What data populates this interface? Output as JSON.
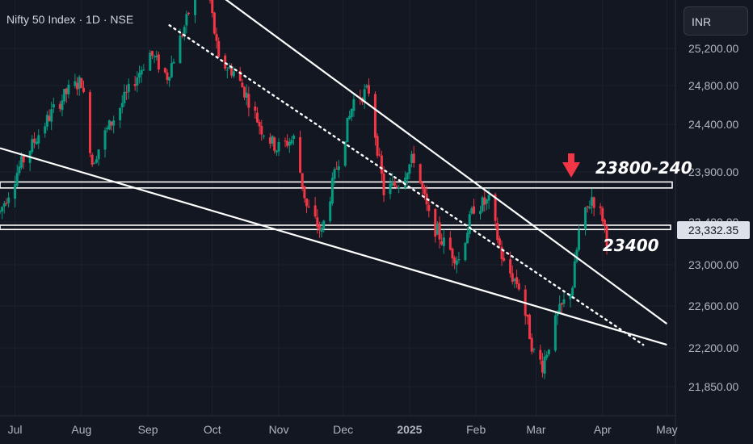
{
  "header": {
    "title": "Nifty 50 Index · 1D · NSE"
  },
  "currency": {
    "label": "INR"
  },
  "annotations": {
    "resistance_label": "23800-240",
    "support_label": "23400"
  },
  "last_price": {
    "value": "23,332.35",
    "color": "#dde2ea"
  },
  "colors": {
    "background": "#131722",
    "up": "#089981",
    "down": "#f23645",
    "grid": "#1e222d",
    "lines": "#ffffff",
    "arrow": "#f23645"
  },
  "chart_data": {
    "type": "candlestick",
    "title": "Nifty 50 Index · 1D · NSE",
    "y_ticks": [
      "25,200.00",
      "24,800.00",
      "24,400.00",
      "23,900.00",
      "23,400.00",
      "23,000.00",
      "22,600.00",
      "22,200.00",
      "21,850.00"
    ],
    "x_ticks": [
      "Jul",
      "Aug",
      "Sep",
      "Oct",
      "Nov",
      "Dec",
      "2025",
      "Feb",
      "Mar",
      "Apr",
      "May"
    ],
    "ylim": [
      21750,
      25450
    ],
    "xlim": [
      "2024-06-24",
      "2025-05-05"
    ],
    "grid": true,
    "path": [
      [
        "2024-06-24",
        23500
      ],
      [
        "2024-07-03",
        23950
      ],
      [
        "2024-07-12",
        24300
      ],
      [
        "2024-07-19",
        24550
      ],
      [
        "2024-07-26",
        24750
      ],
      [
        "2024-08-01",
        24850
      ],
      [
        "2024-08-06",
        24000
      ],
      [
        "2024-08-12",
        24300
      ],
      [
        "2024-08-22",
        24700
      ],
      [
        "2024-09-02",
        25150
      ],
      [
        "2024-09-10",
        24900
      ],
      [
        "2024-09-19",
        25500
      ],
      [
        "2024-09-27",
        26200
      ],
      [
        "2024-10-04",
        25050
      ],
      [
        "2024-10-11",
        24950
      ],
      [
        "2024-10-17",
        24700
      ],
      [
        "2024-10-24",
        24350
      ],
      [
        "2024-10-31",
        24150
      ],
      [
        "2024-11-08",
        24250
      ],
      [
        "2024-11-14",
        23550
      ],
      [
        "2024-11-21",
        23300
      ],
      [
        "2024-11-28",
        23950
      ],
      [
        "2024-12-06",
        24650
      ],
      [
        "2024-12-13",
        24750
      ],
      [
        "2024-12-20",
        23700
      ],
      [
        "2024-12-27",
        23800
      ],
      [
        "2025-01-03",
        24050
      ],
      [
        "2025-01-10",
        23450
      ],
      [
        "2025-01-17",
        23200
      ],
      [
        "2025-01-24",
        23050
      ],
      [
        "2025-01-31",
        23550
      ],
      [
        "2025-02-07",
        23600
      ],
      [
        "2025-02-14",
        23000
      ],
      [
        "2025-02-21",
        22800
      ],
      [
        "2025-02-28",
        22150
      ],
      [
        "2025-03-04",
        22050
      ],
      [
        "2025-03-11",
        22500
      ],
      [
        "2025-03-18",
        22800
      ],
      [
        "2025-03-21",
        23300
      ],
      [
        "2025-03-27",
        23650
      ],
      [
        "2025-04-01",
        23450
      ],
      [
        "2025-04-03",
        23250
      ]
    ],
    "last_close": 23332.35,
    "horizontal_zones": [
      {
        "label": "23800-240",
        "from": 23740,
        "to": 23800
      },
      {
        "label": "23400",
        "from": 23330,
        "to": 23370
      }
    ],
    "trendlines": [
      {
        "style": "solid",
        "from": [
          "2024-06-24",
          24150
        ],
        "to": [
          "2025-05-01",
          22230
        ]
      },
      {
        "style": "solid",
        "from": [
          "2024-10-03",
          25800
        ],
        "to": [
          "2025-05-01",
          22430
        ]
      },
      {
        "style": "dotted",
        "from": [
          "2024-09-11",
          25450
        ],
        "to": [
          "2025-04-20",
          22230
        ]
      }
    ]
  }
}
